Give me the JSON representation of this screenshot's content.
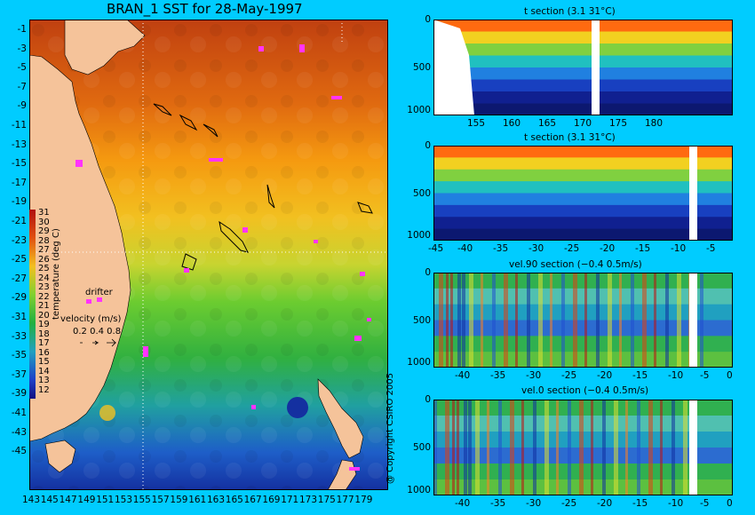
{
  "title": "BRAN_1 SST for 28-May-1997",
  "colors": {
    "background": "#00ccff",
    "land": "#f5c39a",
    "drifter": "#ff33ff"
  },
  "map": {
    "lat_ticks": [
      "-1",
      "-3",
      "-5",
      "-7",
      "-9",
      "-11",
      "-13",
      "-15",
      "-17",
      "-19",
      "-21",
      "-23",
      "-25",
      "-27",
      "-29",
      "-31",
      "-33",
      "-35",
      "-37",
      "-39",
      "-41",
      "-43",
      "-45"
    ],
    "lon_ticks": [
      "143",
      "145",
      "147",
      "149",
      "151",
      "153",
      "155",
      "157",
      "159",
      "161",
      "163",
      "165",
      "167",
      "169",
      "171",
      "173",
      "175",
      "177",
      "179"
    ],
    "colorbar": {
      "title": "temperature (deg C)",
      "labels": [
        "31",
        "30",
        "29",
        "28",
        "27",
        "26",
        "25",
        "24",
        "23",
        "22",
        "21",
        "20",
        "19",
        "18",
        "17",
        "16",
        "15",
        "14",
        "13",
        "12"
      ]
    },
    "drifter_label": "drifter",
    "velocity": {
      "title": "velocity (m/s)",
      "scale": "0.2 0.4 0.8"
    }
  },
  "panels": [
    {
      "title": "t section (3.1       31°C)",
      "y_ticks": [
        "0",
        "500",
        "1000"
      ],
      "x_ticks": [
        "155",
        "160",
        "165",
        "170",
        "175",
        "180"
      ]
    },
    {
      "title": "t section (3.1       31°C)",
      "y_ticks": [
        "0",
        "500",
        "1000"
      ],
      "x_ticks": [
        "-45",
        "-40",
        "-35",
        "-30",
        "-25",
        "-20",
        "-15",
        "-10",
        "-5"
      ]
    },
    {
      "title": "vel.90 section (−0.4       0.5m/s)",
      "y_ticks": [
        "0",
        "500",
        "1000"
      ],
      "x_ticks": [
        "-40",
        "-35",
        "-30",
        "-25",
        "-20",
        "-15",
        "-10",
        "-5",
        "0"
      ]
    },
    {
      "title": "vel.0 section (−0.4       0.5m/s)",
      "y_ticks": [
        "0",
        "500",
        "1000"
      ],
      "x_ticks": [
        "-40",
        "-35",
        "-30",
        "-25",
        "-20",
        "-15",
        "-10",
        "-5",
        "0"
      ]
    }
  ],
  "copyright": "@ Copyright CSIRO 2005"
}
